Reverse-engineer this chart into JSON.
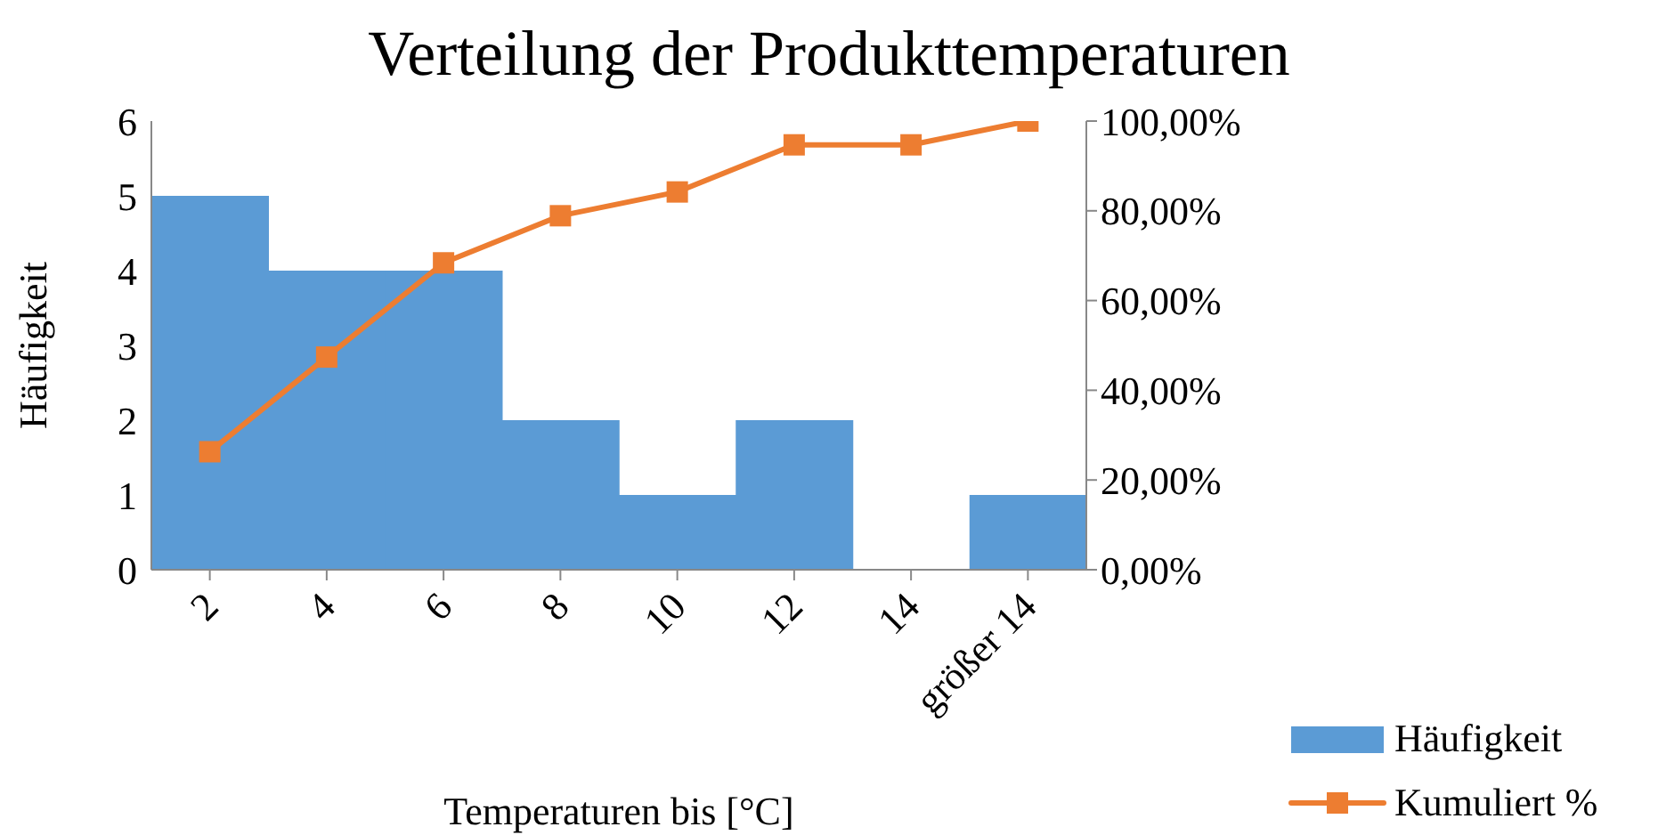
{
  "chart_data": {
    "type": "bar",
    "title": "Verteilung der Produkttemperaturen",
    "xlabel": "Temperaturen bis [°C]",
    "ylabel": "Häufigkeit",
    "categories": [
      "2",
      "4",
      "6",
      "8",
      "10",
      "12",
      "14",
      "größer 14"
    ],
    "series": [
      {
        "name": "Häufigkeit",
        "color": "#5b9bd5",
        "values": [
          5,
          4,
          4,
          2,
          1,
          2,
          0,
          1
        ]
      },
      {
        "name": "Kumuliert %",
        "type": "line",
        "axis": "y2",
        "color": "#ed7d31",
        "values": [
          26.3,
          47.4,
          68.4,
          78.9,
          84.2,
          94.7,
          94.7,
          100
        ]
      }
    ],
    "ylim": [
      0,
      6
    ],
    "yticks": [
      0,
      1,
      2,
      3,
      4,
      5,
      6
    ],
    "y2lim": [
      0,
      100
    ],
    "y2ticks": [
      {
        "value": 0,
        "label": "0,00%"
      },
      {
        "value": 20,
        "label": "20,00%"
      },
      {
        "value": 40,
        "label": "40,00%"
      },
      {
        "value": 60,
        "label": "60,00%"
      },
      {
        "value": 80,
        "label": "80,00%"
      },
      {
        "value": 100,
        "label": "100,00%"
      }
    ],
    "marker": "square",
    "legend": "bottom right"
  }
}
